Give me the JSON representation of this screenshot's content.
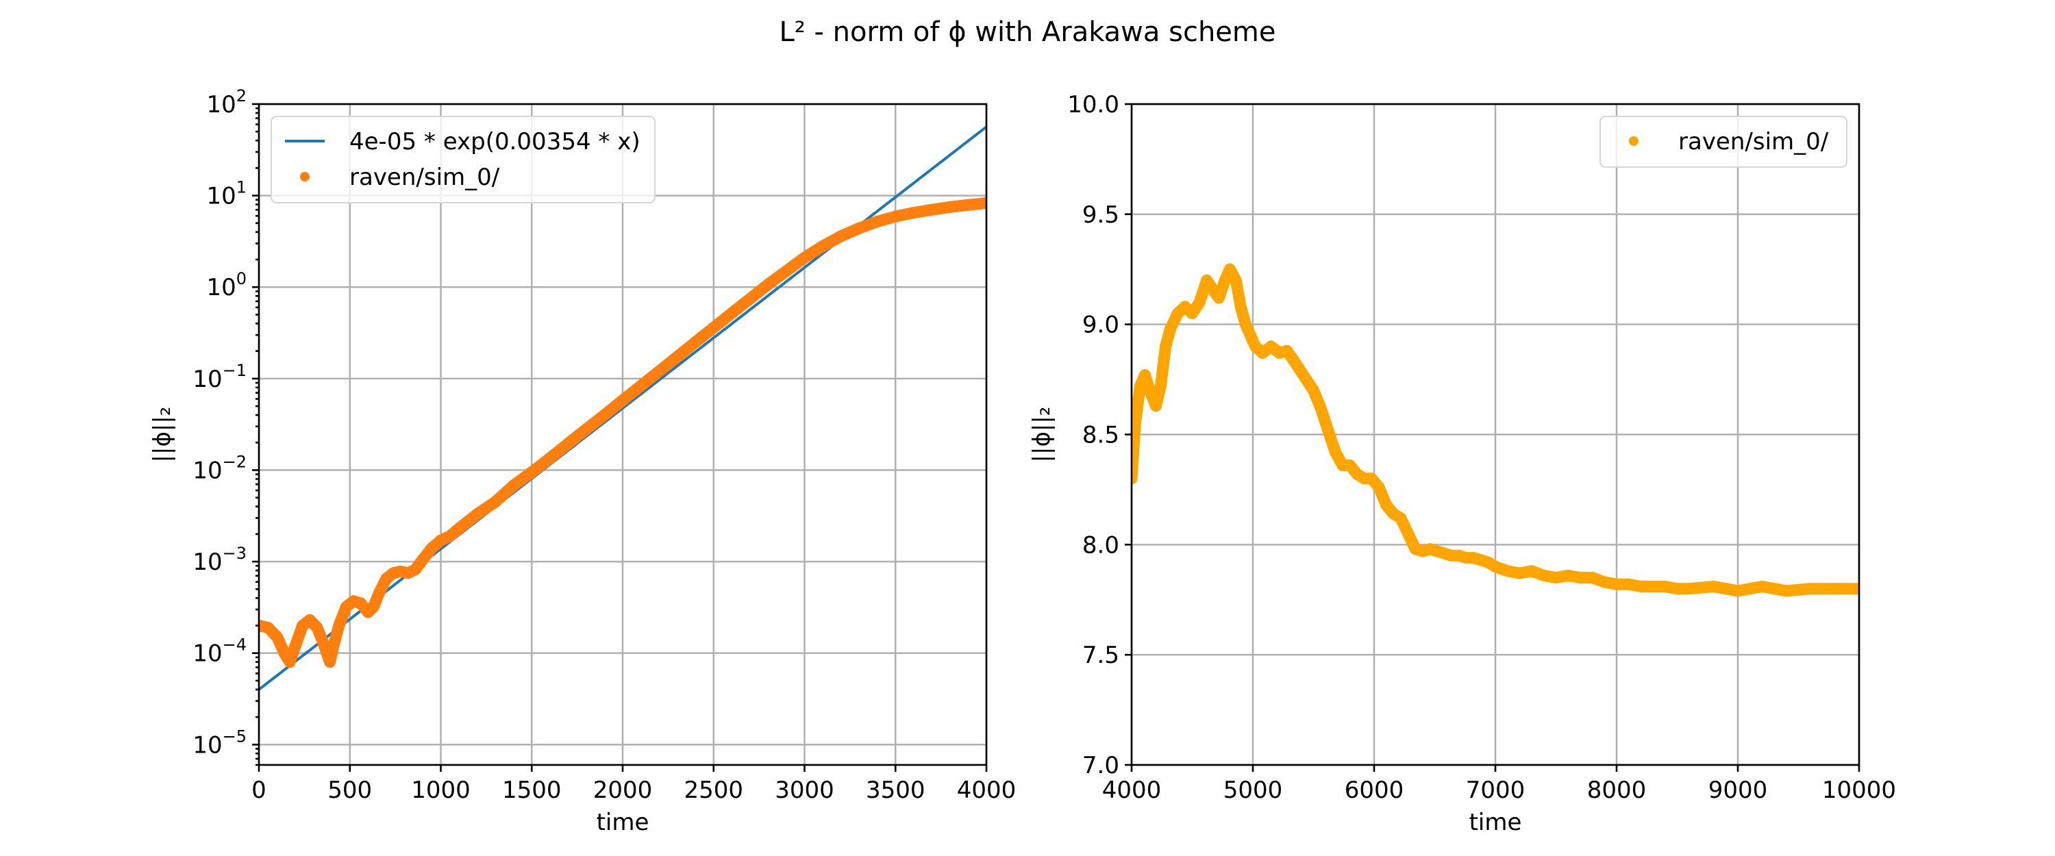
{
  "figure": {
    "title": "L² - norm of ϕ with Arakawa scheme"
  },
  "chart_data": [
    {
      "type": "line",
      "yscale": "log",
      "xlabel": "time",
      "ylabel": "||ϕ||₂",
      "xlim": [
        0,
        4000
      ],
      "ylim": [
        6e-06,
        100
      ],
      "xticks": [
        0,
        500,
        1000,
        1500,
        2000,
        2500,
        3000,
        3500,
        4000
      ],
      "xtick_labels": [
        "0",
        "500",
        "1000",
        "1500",
        "2000",
        "2500",
        "3000",
        "3500",
        "4000"
      ],
      "yticks": [
        1e-05,
        0.0001,
        0.001,
        0.01,
        0.1,
        1,
        10,
        100
      ],
      "ytick_labels": [
        {
          "base": "10",
          "exp": "−5"
        },
        {
          "base": "10",
          "exp": "−4"
        },
        {
          "base": "10",
          "exp": "−3"
        },
        {
          "base": "10",
          "exp": "−2"
        },
        {
          "base": "10",
          "exp": "−1"
        },
        {
          "base": "10",
          "exp": "0"
        },
        {
          "base": "10",
          "exp": "1"
        },
        {
          "base": "10",
          "exp": "2"
        }
      ],
      "grid": true,
      "legend": "top-left",
      "series": [
        {
          "name": "4e-05 * exp(0.00354 * x)",
          "kind": "line",
          "color": "#1f77b4",
          "fit": {
            "a": 4e-05,
            "b": 0.00354
          },
          "x": [
            0,
            4000
          ],
          "y": [
            4e-05,
            57.6
          ]
        },
        {
          "name": "raven/sim_0/",
          "kind": "markers",
          "color": "#ff7f0e",
          "x": [
            0,
            50,
            100,
            140,
            170,
            200,
            240,
            280,
            320,
            360,
            390,
            410,
            440,
            480,
            520,
            560,
            600,
            630,
            660,
            700,
            740,
            780,
            820,
            860,
            900,
            950,
            1000,
            1050,
            1100,
            1200,
            1300,
            1400,
            1500,
            1600,
            1700,
            1800,
            1900,
            2000,
            2200,
            2400,
            2600,
            2800,
            3000,
            3100,
            3200,
            3300,
            3400,
            3500,
            3600,
            3700,
            3800,
            3900,
            4000
          ],
          "y": [
            0.0002,
            0.00019,
            0.00015,
            0.0001,
            8e-05,
            0.00012,
            0.0002,
            0.00023,
            0.00019,
            0.00012,
            8e-05,
            0.00012,
            0.0002,
            0.00032,
            0.00037,
            0.00035,
            0.00028,
            0.00032,
            0.00045,
            0.00065,
            0.00075,
            0.00078,
            0.00075,
            0.00082,
            0.00105,
            0.0014,
            0.0017,
            0.0019,
            0.0023,
            0.0033,
            0.0045,
            0.0068,
            0.0095,
            0.0135,
            0.0195,
            0.028,
            0.04,
            0.058,
            0.12,
            0.25,
            0.52,
            1.07,
            2.1,
            2.8,
            3.6,
            4.4,
            5.2,
            5.9,
            6.5,
            7.0,
            7.5,
            7.9,
            8.3
          ]
        }
      ]
    },
    {
      "type": "scatter",
      "xlabel": "time",
      "ylabel": "||ϕ||₂",
      "xlim": [
        4000,
        10000
      ],
      "ylim": [
        7.0,
        10.0
      ],
      "xticks": [
        4000,
        5000,
        6000,
        7000,
        8000,
        9000,
        10000
      ],
      "xtick_labels": [
        "4000",
        "5000",
        "6000",
        "7000",
        "8000",
        "9000",
        "10000"
      ],
      "yticks": [
        7.0,
        7.5,
        8.0,
        8.5,
        9.0,
        9.5,
        10.0
      ],
      "ytick_labels": [
        "7.0",
        "7.5",
        "8.0",
        "8.5",
        "9.0",
        "9.5",
        "10.0"
      ],
      "grid": true,
      "legend": "top-right",
      "series": [
        {
          "name": "raven/sim_0/",
          "kind": "markers",
          "color": "#ffa500",
          "x": [
            4000,
            4030,
            4070,
            4110,
            4150,
            4200,
            4240,
            4280,
            4320,
            4380,
            4440,
            4500,
            4560,
            4620,
            4680,
            4720,
            4770,
            4810,
            4860,
            4900,
            4940,
            4980,
            5020,
            5080,
            5150,
            5220,
            5280,
            5320,
            5380,
            5440,
            5500,
            5560,
            5620,
            5680,
            5740,
            5800,
            5860,
            5920,
            5980,
            6040,
            6100,
            6160,
            6220,
            6280,
            6340,
            6400,
            6460,
            6520,
            6580,
            6640,
            6700,
            6760,
            6820,
            6880,
            6940,
            7000,
            7100,
            7200,
            7300,
            7400,
            7500,
            7600,
            7700,
            7800,
            7900,
            8000,
            8100,
            8200,
            8300,
            8400,
            8500,
            8600,
            8800,
            9000,
            9200,
            9400,
            9600,
            9800,
            10000
          ],
          "y": [
            8.3,
            8.55,
            8.72,
            8.77,
            8.7,
            8.63,
            8.72,
            8.9,
            8.98,
            9.05,
            9.08,
            9.05,
            9.1,
            9.2,
            9.15,
            9.12,
            9.2,
            9.25,
            9.2,
            9.08,
            9.0,
            8.95,
            8.9,
            8.87,
            8.9,
            8.87,
            8.88,
            8.85,
            8.8,
            8.75,
            8.7,
            8.62,
            8.52,
            8.42,
            8.36,
            8.36,
            8.32,
            8.3,
            8.3,
            8.26,
            8.18,
            8.14,
            8.12,
            8.05,
            7.98,
            7.97,
            7.98,
            7.97,
            7.96,
            7.95,
            7.95,
            7.94,
            7.94,
            7.93,
            7.92,
            7.9,
            7.88,
            7.87,
            7.88,
            7.86,
            7.85,
            7.86,
            7.85,
            7.85,
            7.83,
            7.82,
            7.82,
            7.81,
            7.81,
            7.81,
            7.8,
            7.8,
            7.81,
            7.79,
            7.81,
            7.79,
            7.8,
            7.8,
            7.8
          ]
        }
      ]
    }
  ]
}
